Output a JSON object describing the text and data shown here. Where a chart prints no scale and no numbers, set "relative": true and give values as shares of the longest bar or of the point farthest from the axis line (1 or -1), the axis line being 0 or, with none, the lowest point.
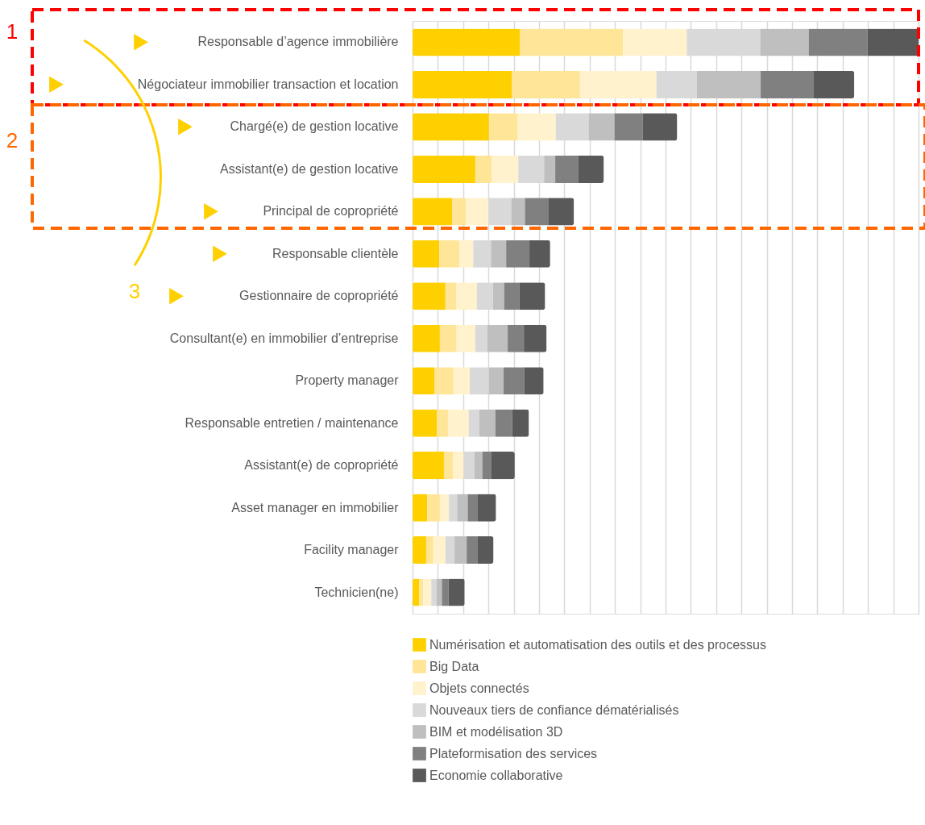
{
  "chart_data": {
    "type": "bar",
    "orientation": "horizontal",
    "stacked": true,
    "relative": true,
    "grid": "x",
    "legend": "bottom",
    "categories": [
      "Responsable d’agence immobilière",
      "Négociateur immobilier transaction et location",
      "Chargé(e) de gestion locative",
      "Assistant(e) de gestion locative",
      "Principal de copropriété",
      "Responsable clientèle",
      "Gestionnaire de copropriété",
      "Consultant(e) en immobilier d’entreprise",
      "Property manager",
      "Responsable entretien / maintenance",
      "Assistant(e) de copropriété",
      "Asset manager en immobilier",
      "Facility manager",
      "Technicien(ne)"
    ],
    "series": [
      {
        "name": "Numérisation et automatisation des outils et des processus",
        "color": "#ffd000",
        "values": [
          0.212,
          0.196,
          0.151,
          0.124,
          0.078,
          0.053,
          0.065,
          0.054,
          0.043,
          0.048,
          0.062,
          0.029,
          0.027,
          0.013
        ]
      },
      {
        "name": "Big Data",
        "color": "#ffe597",
        "values": [
          0.204,
          0.135,
          0.056,
          0.032,
          0.027,
          0.04,
          0.021,
          0.033,
          0.038,
          0.022,
          0.018,
          0.025,
          0.014,
          0.008
        ]
      },
      {
        "name": "Objets connectés",
        "color": "#fff2cc",
        "values": [
          0.126,
          0.151,
          0.076,
          0.053,
          0.045,
          0.027,
          0.041,
          0.037,
          0.032,
          0.041,
          0.021,
          0.018,
          0.024,
          0.016
        ]
      },
      {
        "name": "Nouveaux tiers de confiance dématérialisés",
        "color": "#d9d9d9",
        "values": [
          0.145,
          0.08,
          0.065,
          0.051,
          0.045,
          0.035,
          0.032,
          0.024,
          0.038,
          0.021,
          0.021,
          0.016,
          0.018,
          0.01
        ]
      },
      {
        "name": "BIM et modélisation 3D",
        "color": "#bfbfbf",
        "values": [
          0.096,
          0.126,
          0.051,
          0.022,
          0.027,
          0.03,
          0.022,
          0.04,
          0.029,
          0.032,
          0.016,
          0.021,
          0.024,
          0.011
        ]
      },
      {
        "name": "Plateformisation des services",
        "color": "#808080",
        "values": [
          0.116,
          0.105,
          0.056,
          0.045,
          0.046,
          0.046,
          0.03,
          0.032,
          0.041,
          0.033,
          0.018,
          0.019,
          0.021,
          0.013
        ]
      },
      {
        "name": "Economie collaborative",
        "color": "#595959",
        "values": [
          0.101,
          0.08,
          0.068,
          0.051,
          0.051,
          0.041,
          0.051,
          0.045,
          0.038,
          0.033,
          0.046,
          0.037,
          0.032,
          0.032
        ]
      }
    ],
    "annotations": [
      "1",
      "2",
      "3"
    ]
  }
}
